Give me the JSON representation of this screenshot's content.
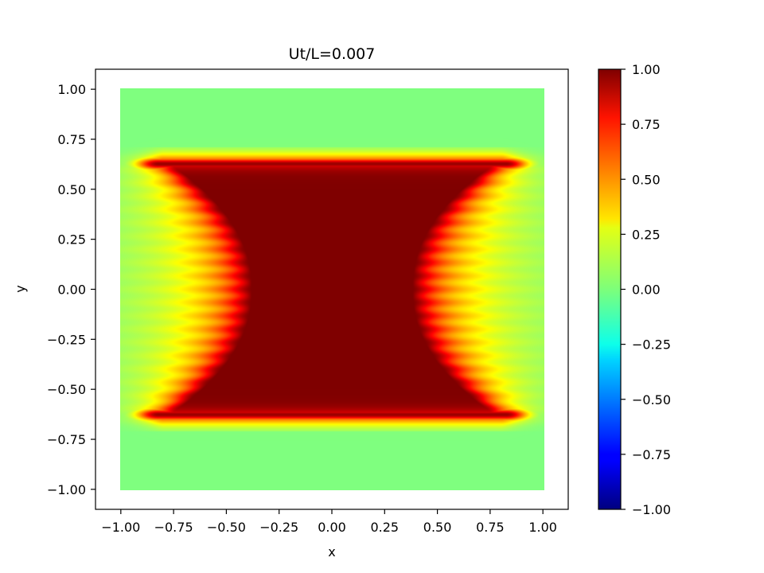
{
  "chart_data": {
    "type": "heatmap",
    "title": "Ut/L=0.007",
    "xlabel": "x",
    "ylabel": "y",
    "xlim": [
      -1.12,
      1.12
    ],
    "ylim": [
      -1.1,
      1.1
    ],
    "data_extent": {
      "x": [
        -1.0,
        1.0
      ],
      "y": [
        -1.0,
        1.0
      ]
    },
    "xticks": [
      -1.0,
      -0.75,
      -0.5,
      -0.25,
      0.0,
      0.25,
      0.5,
      0.75,
      1.0
    ],
    "xtick_labels": [
      "−1.00",
      "−0.75",
      "−0.50",
      "−0.25",
      "0.00",
      "0.25",
      "0.50",
      "0.75",
      "1.00"
    ],
    "yticks": [
      1.0,
      0.75,
      0.5,
      0.25,
      0.0,
      -0.25,
      -0.5,
      -0.75,
      -1.0
    ],
    "ytick_labels": [
      "1.00",
      "0.75",
      "0.50",
      "0.25",
      "0.00",
      "−0.25",
      "−0.50",
      "−0.75",
      "−1.00"
    ],
    "colormap": "jet",
    "clim": [
      -1.0,
      1.0
    ],
    "colorbar_ticks": [
      1.0,
      0.75,
      0.5,
      0.25,
      0.0,
      -0.25,
      -0.5,
      -0.75,
      -1.0
    ],
    "colorbar_tick_labels": [
      "1.00",
      "0.75",
      "0.50",
      "0.25",
      "0.00",
      "−0.25",
      "−0.50",
      "−0.75",
      "−1.00"
    ],
    "field_description_values": {
      "background_value": 0.0,
      "core_value": 1.0,
      "band_y_extent": [
        -0.65,
        0.65
      ],
      "core_half_width_at_y0": 0.38,
      "core_half_width_at_band_edge": 0.8
    },
    "grid": false,
    "colors": {
      "background": "#ffffff",
      "axes": "#000000"
    }
  }
}
